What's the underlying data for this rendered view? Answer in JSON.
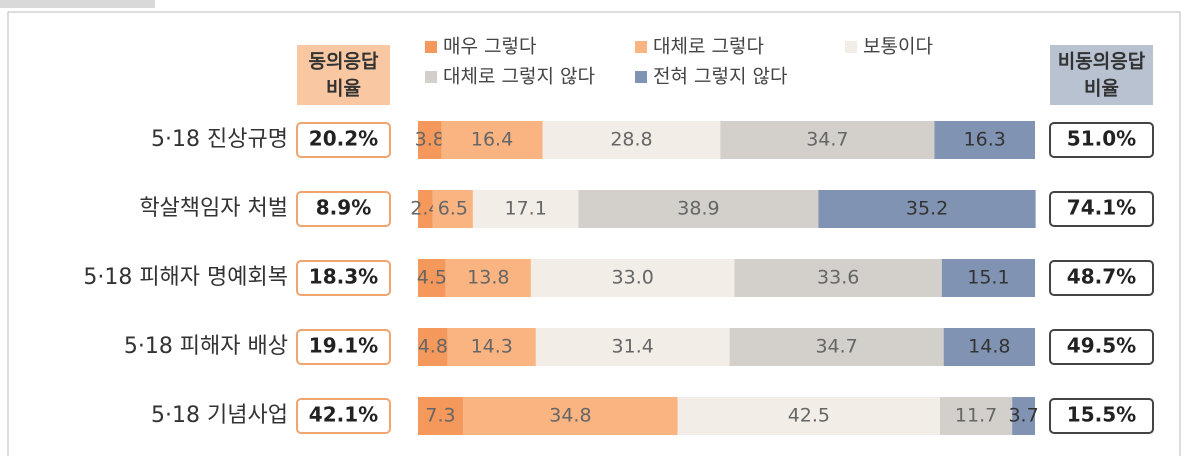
{
  "chart_data": {
    "type": "stacked-bar",
    "orientation": "horizontal",
    "categories": [
      "5·18 진상규명",
      "학살책임자 처벌",
      "5·18 피해자 명예회복",
      "5·18 피해자 배상",
      "5·18 기념사업"
    ],
    "xlim": [
      0,
      100
    ],
    "legend": "top",
    "series": [
      {
        "name": "매우 그렇다",
        "color": "#f4985c",
        "values": [
          3.8,
          2.4,
          4.5,
          4.8,
          7.3
        ],
        "value_labels": [
          "3.8",
          "2.4",
          "4.5",
          "4.8",
          "7.3"
        ]
      },
      {
        "name": "대체로 그렇다",
        "color": "#f9b482",
        "values": [
          16.4,
          6.5,
          13.8,
          14.3,
          34.8
        ],
        "value_labels": [
          "16.4",
          "6.5",
          "13.8",
          "14.3",
          "34.8"
        ]
      },
      {
        "name": "보통이다",
        "color": "#f3ede7",
        "values": [
          28.8,
          17.1,
          33.0,
          31.4,
          42.5
        ],
        "value_labels": [
          "28.8",
          "17.1",
          "33.0",
          "31.4",
          "42.5"
        ]
      },
      {
        "name": "대체로 그렇지 않다",
        "color": "#d3cfcb",
        "values": [
          34.7,
          38.9,
          33.6,
          34.7,
          11.7
        ],
        "value_labels": [
          "34.7",
          "38.9",
          "33.6",
          "34.7",
          "11.7"
        ]
      },
      {
        "name": "전혀 그렇지 않다",
        "color": "#8193b2",
        "values": [
          16.3,
          35.2,
          15.1,
          14.8,
          3.7
        ],
        "value_labels": [
          "16.3",
          "35.2",
          "15.1",
          "14.8",
          "3.7"
        ]
      }
    ],
    "agree": {
      "header": [
        "동의응답",
        "비율"
      ],
      "color": "#f9c8a3",
      "values": [
        20.2,
        8.9,
        18.3,
        19.1,
        42.1
      ],
      "value_labels": [
        "20.2%",
        "8.9%",
        "18.3%",
        "19.1%",
        "42.1%"
      ]
    },
    "disagree": {
      "header": [
        "비동의응답",
        "비율"
      ],
      "color": "#b8c2d1",
      "values": [
        51.0,
        74.1,
        48.7,
        49.5,
        15.5
      ],
      "value_labels": [
        "51.0%",
        "74.1%",
        "48.7%",
        "49.5%",
        "15.5%"
      ]
    }
  }
}
